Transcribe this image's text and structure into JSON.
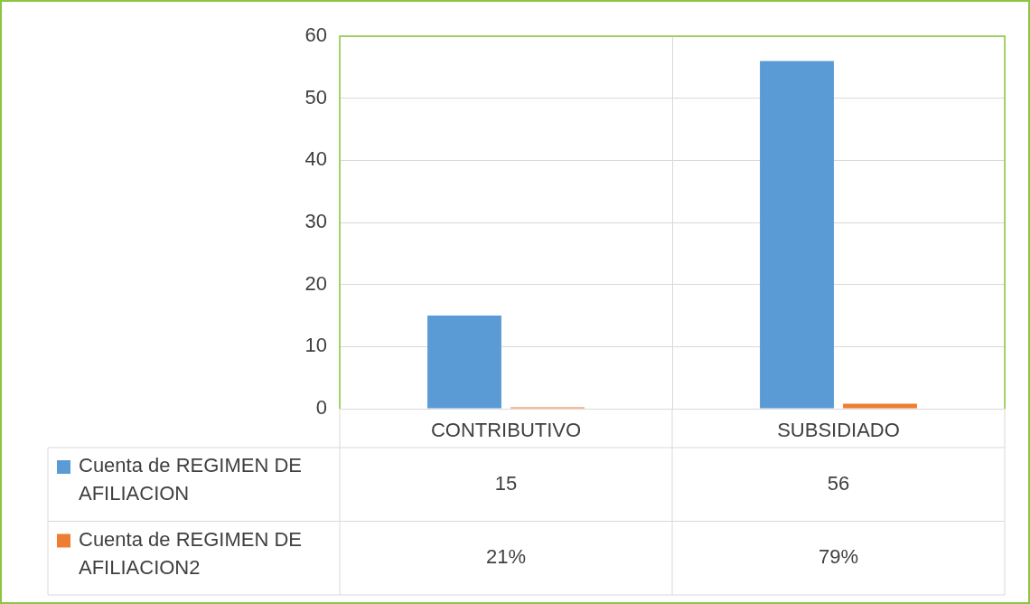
{
  "chart_data": {
    "type": "bar",
    "categories": [
      "CONTRIBUTIVO",
      "SUBSIDIADO"
    ],
    "series": [
      {
        "name": "Cuenta de REGIMEN DE AFILIACION",
        "color": "#5b9bd5",
        "values": [
          15,
          56
        ],
        "value_labels": [
          "15",
          "56"
        ]
      },
      {
        "name": "Cuenta de REGIMEN DE AFILIACION2",
        "color": "#ed7d31",
        "values": [
          0.21,
          0.79
        ],
        "value_labels": [
          "21%",
          "79%"
        ]
      }
    ],
    "ylim": [
      0,
      60
    ],
    "yticks": [
      0,
      10,
      20,
      30,
      40,
      50,
      60
    ],
    "grid": true,
    "legend": "bottom"
  }
}
